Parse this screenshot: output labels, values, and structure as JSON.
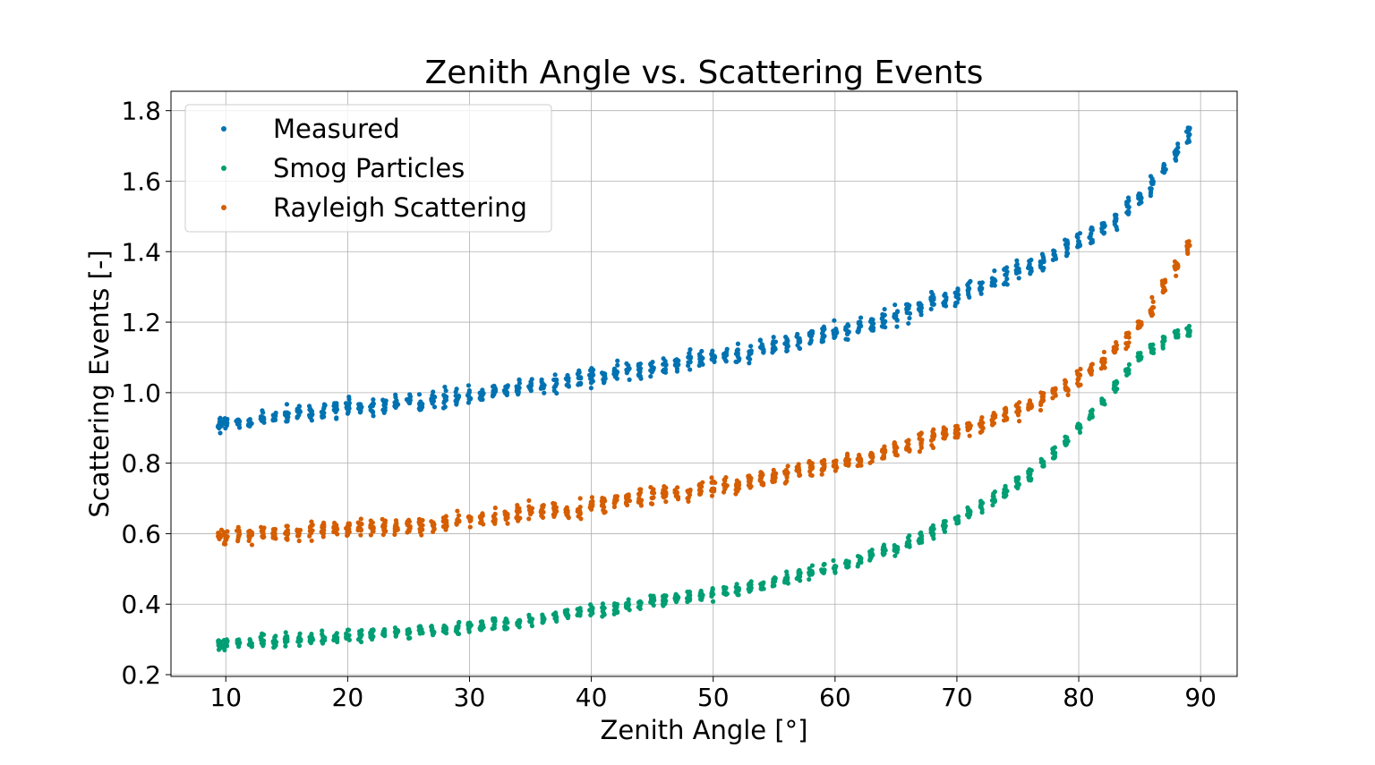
{
  "chart_data": {
    "type": "scatter",
    "title": "Zenith Angle vs. Scattering Events",
    "xlabel": "Zenith Angle [°]",
    "ylabel": "Scattering Events [-]",
    "xlim": [
      5.5,
      93
    ],
    "ylim": [
      0.195,
      1.855
    ],
    "xticks": [
      10,
      20,
      30,
      40,
      50,
      60,
      70,
      80,
      90
    ],
    "yticks": [
      0.2,
      0.4,
      0.6,
      0.8,
      1.0,
      1.2,
      1.4,
      1.6,
      1.8
    ],
    "xtick_labels": [
      "10",
      "20",
      "30",
      "40",
      "50",
      "60",
      "70",
      "80",
      "90"
    ],
    "ytick_labels": [
      "0.2",
      "0.4",
      "0.6",
      "0.8",
      "1.0",
      "1.2",
      "1.4",
      "1.6",
      "1.8"
    ],
    "grid": true,
    "legend_position": "upper-left",
    "x": [
      9.5,
      10,
      11,
      12,
      13,
      14,
      15,
      16,
      17,
      18,
      19,
      20,
      21,
      22,
      23,
      24,
      25,
      26,
      27,
      28,
      29,
      30,
      31,
      32,
      33,
      34,
      35,
      36,
      37,
      38,
      39,
      40,
      41,
      42,
      43,
      44,
      45,
      46,
      47,
      48,
      49,
      50,
      51,
      52,
      53,
      54,
      55,
      56,
      57,
      58,
      59,
      60,
      61,
      62,
      63,
      64,
      65,
      66,
      67,
      68,
      69,
      70,
      71,
      72,
      73,
      74,
      75,
      76,
      77,
      78,
      79,
      80,
      81,
      82,
      83,
      84,
      85,
      86,
      87,
      88,
      89
    ],
    "series": [
      {
        "name": "Measured",
        "color": "#0072b2",
        "values": [
          0.91,
          0.91,
          0.915,
          0.92,
          0.925,
          0.93,
          0.935,
          0.94,
          0.94,
          0.945,
          0.95,
          0.955,
          0.955,
          0.96,
          0.965,
          0.97,
          0.975,
          0.975,
          0.98,
          0.985,
          0.99,
          0.995,
          1.0,
          1.005,
          1.01,
          1.015,
          1.02,
          1.025,
          1.03,
          1.035,
          1.04,
          1.045,
          1.05,
          1.055,
          1.06,
          1.065,
          1.075,
          1.08,
          1.085,
          1.09,
          1.095,
          1.1,
          1.105,
          1.11,
          1.115,
          1.125,
          1.13,
          1.14,
          1.15,
          1.16,
          1.165,
          1.175,
          1.18,
          1.19,
          1.2,
          1.21,
          1.22,
          1.23,
          1.24,
          1.255,
          1.265,
          1.275,
          1.29,
          1.3,
          1.315,
          1.33,
          1.345,
          1.36,
          1.375,
          1.39,
          1.41,
          1.43,
          1.45,
          1.47,
          1.495,
          1.525,
          1.555,
          1.59,
          1.63,
          1.675,
          1.735
        ],
        "spread": 0.04
      },
      {
        "name": "Smog Particles",
        "color": "#009e73",
        "values": [
          0.285,
          0.285,
          0.29,
          0.29,
          0.295,
          0.295,
          0.3,
          0.3,
          0.3,
          0.305,
          0.305,
          0.31,
          0.31,
          0.315,
          0.315,
          0.32,
          0.32,
          0.325,
          0.325,
          0.33,
          0.335,
          0.335,
          0.34,
          0.345,
          0.345,
          0.35,
          0.355,
          0.36,
          0.365,
          0.37,
          0.375,
          0.38,
          0.385,
          0.39,
          0.395,
          0.4,
          0.405,
          0.41,
          0.415,
          0.42,
          0.425,
          0.43,
          0.435,
          0.44,
          0.45,
          0.455,
          0.465,
          0.47,
          0.48,
          0.49,
          0.5,
          0.505,
          0.515,
          0.525,
          0.54,
          0.55,
          0.56,
          0.575,
          0.59,
          0.605,
          0.62,
          0.64,
          0.66,
          0.68,
          0.7,
          0.72,
          0.745,
          0.77,
          0.8,
          0.83,
          0.86,
          0.895,
          0.935,
          0.975,
          1.02,
          1.06,
          1.1,
          1.125,
          1.15,
          1.165,
          1.175
        ],
        "spread": 0.025
      },
      {
        "name": "Rayleigh Scattering",
        "color": "#d55e00",
        "values": [
          0.59,
          0.59,
          0.595,
          0.595,
          0.6,
          0.6,
          0.6,
          0.605,
          0.605,
          0.605,
          0.61,
          0.61,
          0.615,
          0.615,
          0.62,
          0.62,
          0.625,
          0.625,
          0.63,
          0.63,
          0.635,
          0.64,
          0.64,
          0.645,
          0.65,
          0.655,
          0.66,
          0.665,
          0.665,
          0.67,
          0.675,
          0.68,
          0.685,
          0.69,
          0.695,
          0.7,
          0.705,
          0.71,
          0.715,
          0.72,
          0.725,
          0.73,
          0.735,
          0.74,
          0.745,
          0.755,
          0.76,
          0.765,
          0.775,
          0.78,
          0.79,
          0.795,
          0.805,
          0.81,
          0.82,
          0.83,
          0.84,
          0.85,
          0.86,
          0.87,
          0.88,
          0.89,
          0.9,
          0.91,
          0.925,
          0.935,
          0.95,
          0.965,
          0.98,
          0.995,
          1.015,
          1.04,
          1.065,
          1.09,
          1.12,
          1.155,
          1.195,
          1.245,
          1.3,
          1.36,
          1.42
        ],
        "spread": 0.035
      }
    ]
  }
}
